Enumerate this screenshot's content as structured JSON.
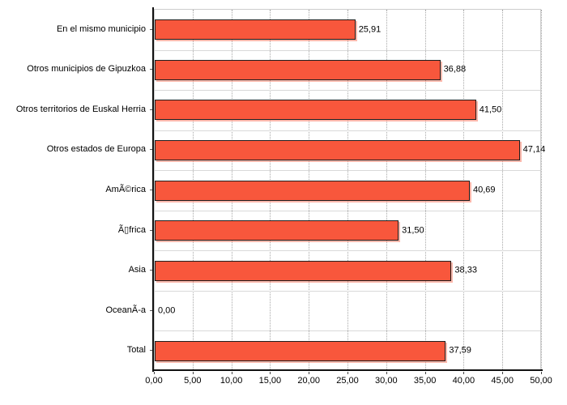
{
  "chart_data": {
    "type": "bar",
    "orientation": "horizontal",
    "categories": [
      "En el mismo municipio",
      "Otros municipios de Gipuzkoa",
      "Otros territorios de Euskal Herria",
      "Otros estados de Europa",
      "AmÃ©rica",
      "Ã▯frica",
      "Asia",
      "OceanÃ-a",
      "Total"
    ],
    "values": [
      25.91,
      36.88,
      41.5,
      47.14,
      40.69,
      31.5,
      38.33,
      0.0,
      37.59
    ],
    "value_labels": [
      "25,91",
      "36,88",
      "41,50",
      "47,14",
      "40,69",
      "31,50",
      "38,33",
      "0,00",
      "37,59"
    ],
    "x_ticks": [
      "0,00",
      "5,00",
      "10,00",
      "15,00",
      "20,00",
      "25,00",
      "30,00",
      "35,00",
      "40,00",
      "45,00",
      "50,00"
    ],
    "x_tick_values": [
      0,
      5,
      10,
      15,
      20,
      25,
      30,
      35,
      40,
      45,
      50
    ],
    "xlim": [
      0,
      50
    ],
    "grid": {
      "vertical": "dotted",
      "horizontal": "row-boundaries"
    },
    "legend": "none",
    "colors": {
      "bar_fill": "#f8573c",
      "bar_border": "#1f1f1f",
      "bar_shadow": "rgba(248,87,60,0.42)",
      "vertical_gridline": "#a8a8a8",
      "row_gridline": "#d9d9d9",
      "plot_border": "#cccccc",
      "axis_line": "#111111",
      "text": "#000000",
      "background": "#ffffff"
    }
  }
}
